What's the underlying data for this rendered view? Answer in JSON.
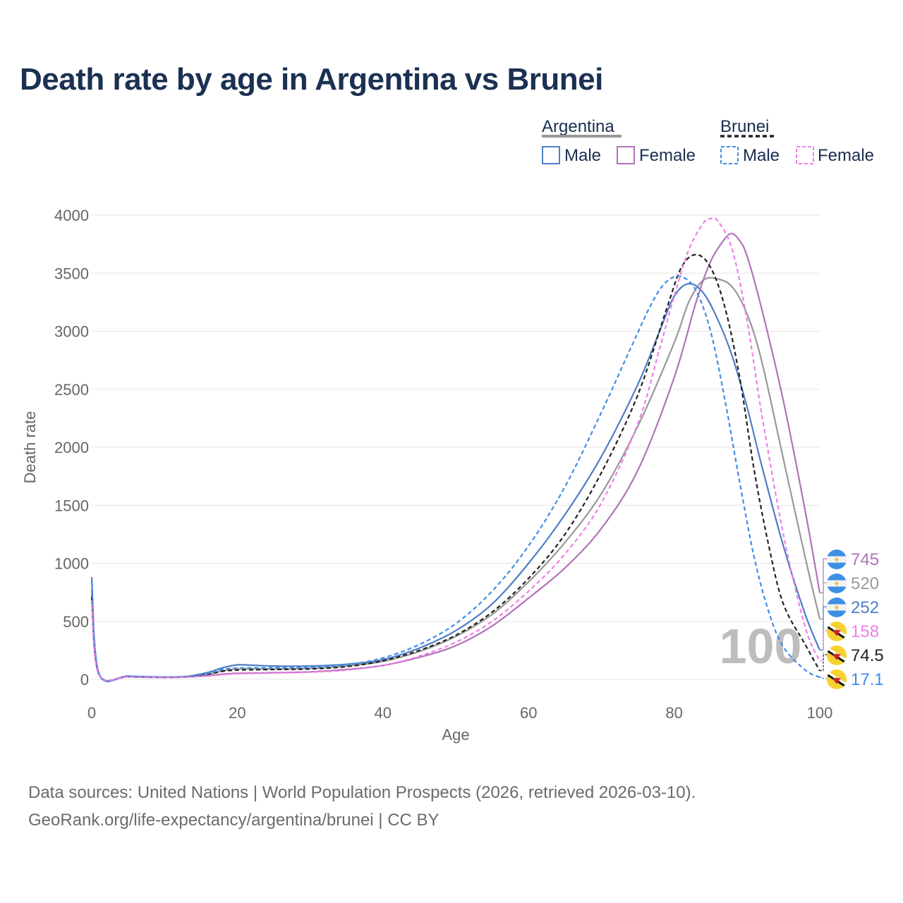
{
  "title": "Death rate by age in Argentina vs Brunei",
  "footer": {
    "line1": "Data sources: United Nations | World Population Prospects (2026, retrieved 2026-03-10).",
    "line2": "GeoRank.org/life-expectancy/argentina/brunei | CC BY"
  },
  "legend": {
    "group1": "Argentina",
    "group2": "Brunei",
    "male": "Male",
    "female": "Female"
  },
  "age_marker": "100",
  "end_labels": [
    "745",
    "520",
    "252",
    "158",
    "74.5",
    "17.1"
  ],
  "chart_data": {
    "type": "line",
    "title": "Death rate by age in Argentina vs Brunei",
    "xlabel": "Age",
    "ylabel": "Death rate",
    "xlim": [
      0,
      100
    ],
    "ylim": [
      0,
      4000
    ],
    "xticks": [
      "0",
      "20",
      "40",
      "60",
      "80",
      "100"
    ],
    "yticks": [
      "0",
      "500",
      "1000",
      "1500",
      "2000",
      "2500",
      "3000",
      "3500",
      "4000"
    ],
    "series": [
      {
        "name": "Argentina Total",
        "color": "#999999",
        "dash": false,
        "end_value": 520,
        "points": [
          [
            0,
            770
          ],
          [
            1,
            45
          ],
          [
            5,
            25
          ],
          [
            10,
            18
          ],
          [
            13,
            22
          ],
          [
            16,
            45
          ],
          [
            18,
            75
          ],
          [
            20,
            90
          ],
          [
            22,
            92
          ],
          [
            25,
            90
          ],
          [
            30,
            95
          ],
          [
            35,
            115
          ],
          [
            40,
            155
          ],
          [
            45,
            240
          ],
          [
            50,
            370
          ],
          [
            55,
            560
          ],
          [
            60,
            840
          ],
          [
            65,
            1180
          ],
          [
            70,
            1600
          ],
          [
            75,
            2180
          ],
          [
            80,
            2900
          ],
          [
            82,
            3250
          ],
          [
            84,
            3440
          ],
          [
            86,
            3450
          ],
          [
            88,
            3380
          ],
          [
            90,
            3150
          ],
          [
            92,
            2750
          ],
          [
            95,
            1900
          ],
          [
            98,
            1050
          ],
          [
            100,
            520
          ]
        ]
      },
      {
        "name": "Argentina Male",
        "color": "#4f7ec5",
        "dash": false,
        "end_value": 252,
        "points": [
          [
            0,
            880
          ],
          [
            1,
            50
          ],
          [
            5,
            28
          ],
          [
            10,
            20
          ],
          [
            13,
            25
          ],
          [
            16,
            60
          ],
          [
            18,
            100
          ],
          [
            20,
            125
          ],
          [
            22,
            122
          ],
          [
            25,
            115
          ],
          [
            30,
            115
          ],
          [
            35,
            130
          ],
          [
            40,
            170
          ],
          [
            45,
            270
          ],
          [
            50,
            420
          ],
          [
            55,
            650
          ],
          [
            60,
            1000
          ],
          [
            65,
            1420
          ],
          [
            70,
            1920
          ],
          [
            75,
            2540
          ],
          [
            78,
            3000
          ],
          [
            80,
            3300
          ],
          [
            82,
            3410
          ],
          [
            84,
            3330
          ],
          [
            86,
            3100
          ],
          [
            88,
            2780
          ],
          [
            90,
            2350
          ],
          [
            92,
            1850
          ],
          [
            95,
            1150
          ],
          [
            98,
            560
          ],
          [
            100,
            252
          ]
        ]
      },
      {
        "name": "Argentina Female",
        "color": "#b172b8",
        "dash": false,
        "end_value": 745,
        "points": [
          [
            0,
            700
          ],
          [
            1,
            40
          ],
          [
            5,
            22
          ],
          [
            10,
            16
          ],
          [
            13,
            20
          ],
          [
            16,
            33
          ],
          [
            18,
            45
          ],
          [
            20,
            52
          ],
          [
            25,
            58
          ],
          [
            30,
            65
          ],
          [
            35,
            85
          ],
          [
            40,
            120
          ],
          [
            45,
            190
          ],
          [
            50,
            290
          ],
          [
            55,
            460
          ],
          [
            60,
            700
          ],
          [
            65,
            960
          ],
          [
            70,
            1300
          ],
          [
            75,
            1800
          ],
          [
            80,
            2600
          ],
          [
            83,
            3250
          ],
          [
            85,
            3600
          ],
          [
            87,
            3800
          ],
          [
            88,
            3840
          ],
          [
            89,
            3780
          ],
          [
            90,
            3650
          ],
          [
            92,
            3200
          ],
          [
            95,
            2400
          ],
          [
            98,
            1450
          ],
          [
            100,
            745
          ]
        ]
      },
      {
        "name": "Brunei Total",
        "color": "#222222",
        "dash": true,
        "end_value": 74.5,
        "points": [
          [
            0,
            720
          ],
          [
            1,
            45
          ],
          [
            5,
            25
          ],
          [
            10,
            18
          ],
          [
            13,
            22
          ],
          [
            16,
            45
          ],
          [
            18,
            70
          ],
          [
            20,
            80
          ],
          [
            25,
            85
          ],
          [
            30,
            90
          ],
          [
            35,
            110
          ],
          [
            40,
            160
          ],
          [
            45,
            250
          ],
          [
            50,
            380
          ],
          [
            55,
            580
          ],
          [
            60,
            870
          ],
          [
            65,
            1250
          ],
          [
            70,
            1780
          ],
          [
            75,
            2450
          ],
          [
            79,
            3200
          ],
          [
            81,
            3550
          ],
          [
            83,
            3660
          ],
          [
            85,
            3550
          ],
          [
            87,
            3200
          ],
          [
            89,
            2600
          ],
          [
            91,
            1800
          ],
          [
            93,
            1150
          ],
          [
            95,
            650
          ],
          [
            98,
            300
          ],
          [
            100,
            74.5
          ]
        ]
      },
      {
        "name": "Brunei Male",
        "color": "#3f8de8",
        "dash": true,
        "end_value": 17.1,
        "points": [
          [
            0,
            850
          ],
          [
            1,
            50
          ],
          [
            5,
            27
          ],
          [
            10,
            20
          ],
          [
            13,
            25
          ],
          [
            16,
            52
          ],
          [
            18,
            85
          ],
          [
            20,
            98
          ],
          [
            25,
            100
          ],
          [
            30,
            105
          ],
          [
            35,
            125
          ],
          [
            40,
            185
          ],
          [
            45,
            300
          ],
          [
            50,
            480
          ],
          [
            55,
            760
          ],
          [
            60,
            1150
          ],
          [
            65,
            1660
          ],
          [
            70,
            2300
          ],
          [
            74,
            2850
          ],
          [
            77,
            3250
          ],
          [
            79,
            3430
          ],
          [
            81,
            3470
          ],
          [
            83,
            3350
          ],
          [
            85,
            3000
          ],
          [
            87,
            2400
          ],
          [
            89,
            1700
          ],
          [
            91,
            1050
          ],
          [
            93,
            580
          ],
          [
            95,
            280
          ],
          [
            98,
            80
          ],
          [
            100,
            17.1
          ]
        ]
      },
      {
        "name": "Brunei Female",
        "color": "#f07ee8",
        "dash": true,
        "end_value": 158,
        "points": [
          [
            0,
            650
          ],
          [
            1,
            38
          ],
          [
            5,
            22
          ],
          [
            10,
            16
          ],
          [
            13,
            20
          ],
          [
            16,
            30
          ],
          [
            18,
            40
          ],
          [
            20,
            48
          ],
          [
            25,
            55
          ],
          [
            30,
            62
          ],
          [
            35,
            80
          ],
          [
            40,
            120
          ],
          [
            45,
            200
          ],
          [
            50,
            320
          ],
          [
            55,
            500
          ],
          [
            60,
            760
          ],
          [
            65,
            1080
          ],
          [
            70,
            1520
          ],
          [
            75,
            2200
          ],
          [
            78,
            2850
          ],
          [
            80,
            3300
          ],
          [
            82,
            3700
          ],
          [
            84,
            3930
          ],
          [
            85,
            3970
          ],
          [
            86,
            3950
          ],
          [
            88,
            3700
          ],
          [
            90,
            3100
          ],
          [
            92,
            2300
          ],
          [
            95,
            1250
          ],
          [
            98,
            450
          ],
          [
            100,
            158
          ]
        ]
      }
    ]
  }
}
